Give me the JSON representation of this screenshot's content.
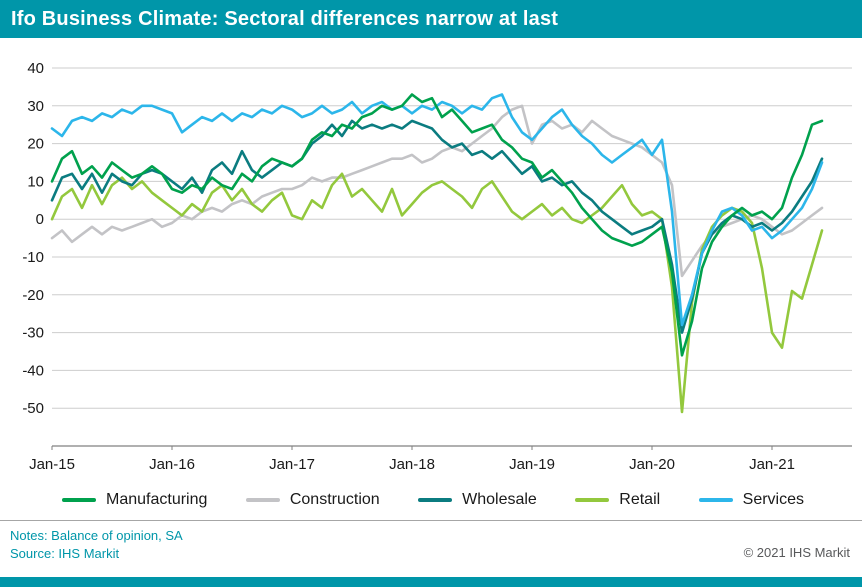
{
  "header": {
    "title": "Ifo Business Climate: Sectoral differences narrow at last"
  },
  "notes": {
    "line1": "Notes: Balance of opinion, SA",
    "line2": "Source: IHS Markit",
    "copyright": "© 2021 IHS Markit"
  },
  "colors": {
    "header_bg": "#0096A9",
    "footer_bg": "#0096A9",
    "notes_text": "#0096A9",
    "copyright_text": "#58595B",
    "grid_line": "#CDCDCD",
    "axis_line": "#808080",
    "tick_text": "#1A1A1A"
  },
  "chart_data": {
    "type": "line",
    "title": "Ifo Business Climate: Sectoral differences narrow at last",
    "xlabel": "",
    "ylabel": "Balance of opinion, SA",
    "x_unit": "month",
    "x_start": "Jan-15",
    "x_end": "Jun-21",
    "x_tick_labels": [
      "Jan-15",
      "Jan-16",
      "Jan-17",
      "Jan-18",
      "Jan-19",
      "Jan-20",
      "Jan-21"
    ],
    "x_tick_month_index": [
      0,
      12,
      24,
      36,
      48,
      60,
      72
    ],
    "ylim": [
      -60,
      40
    ],
    "y_ticks": [
      40,
      30,
      20,
      10,
      0,
      -10,
      -20,
      -30,
      -40,
      -50
    ],
    "grid": true,
    "legend_position": "bottom",
    "series": [
      {
        "name": "Manufacturing",
        "color": "#00A14D",
        "values": [
          10,
          16,
          18,
          12,
          14,
          11,
          15,
          13,
          11,
          12,
          14,
          12,
          8,
          7,
          9,
          8,
          11,
          9,
          8,
          12,
          10,
          14,
          16,
          15,
          14,
          16,
          21,
          23,
          22,
          25,
          24,
          27,
          28,
          30,
          29,
          30,
          33,
          31,
          32,
          27,
          29,
          26,
          23,
          24,
          25,
          21,
          19,
          16,
          15,
          11,
          13,
          10,
          7,
          3,
          0,
          -3,
          -5,
          -6,
          -7,
          -6,
          -4,
          -2,
          -14,
          -36,
          -27,
          -13,
          -6,
          -2,
          1,
          3,
          1,
          2,
          0,
          3,
          11,
          17,
          25,
          26
        ]
      },
      {
        "name": "Construction",
        "color": "#C3C3C6",
        "values": [
          -5,
          -3,
          -6,
          -4,
          -2,
          -4,
          -2,
          -3,
          -2,
          -1,
          0,
          -2,
          -1,
          1,
          0,
          2,
          3,
          2,
          4,
          5,
          4,
          6,
          7,
          8,
          8,
          9,
          11,
          10,
          11,
          11,
          12,
          13,
          14,
          15,
          16,
          16,
          17,
          15,
          16,
          18,
          19,
          18,
          20,
          22,
          24,
          27,
          29,
          30,
          20,
          25,
          26,
          24,
          25,
          23,
          26,
          24,
          22,
          21,
          20,
          19,
          17,
          15,
          9,
          -15,
          -11,
          -7,
          -4,
          -2,
          -1,
          0,
          1,
          0,
          -2,
          -4,
          -3,
          -1,
          1,
          3
        ]
      },
      {
        "name": "Wholesale",
        "color": "#0B7C80",
        "values": [
          5,
          11,
          12,
          8,
          12,
          7,
          12,
          10,
          9,
          12,
          13,
          12,
          10,
          8,
          11,
          7,
          13,
          15,
          12,
          18,
          13,
          11,
          13,
          15,
          14,
          16,
          20,
          22,
          25,
          22,
          26,
          24,
          25,
          24,
          25,
          24,
          26,
          25,
          24,
          21,
          19,
          20,
          17,
          18,
          16,
          18,
          15,
          12,
          14,
          10,
          11,
          9,
          10,
          7,
          5,
          2,
          0,
          -2,
          -4,
          -3,
          -2,
          0,
          -12,
          -30,
          -21,
          -9,
          -4,
          -1,
          1,
          0,
          -2,
          -1,
          -3,
          -1,
          2,
          6,
          10,
          16
        ]
      },
      {
        "name": "Retail",
        "color": "#93C83D",
        "values": [
          0,
          6,
          8,
          3,
          9,
          4,
          9,
          11,
          8,
          10,
          7,
          5,
          3,
          1,
          4,
          2,
          7,
          9,
          5,
          8,
          4,
          2,
          5,
          7,
          1,
          0,
          5,
          3,
          9,
          12,
          6,
          8,
          5,
          2,
          8,
          1,
          4,
          7,
          9,
          10,
          8,
          6,
          3,
          8,
          10,
          6,
          2,
          0,
          2,
          4,
          1,
          3,
          0,
          -1,
          1,
          3,
          6,
          9,
          4,
          1,
          2,
          0,
          -18,
          -51,
          -22,
          -8,
          -2,
          1,
          3,
          2,
          -1,
          -13,
          -30,
          -34,
          -19,
          -21,
          -12,
          -3
        ]
      },
      {
        "name": "Services",
        "color": "#2CB6EA",
        "values": [
          24,
          22,
          26,
          27,
          26,
          28,
          27,
          29,
          28,
          30,
          30,
          29,
          28,
          23,
          25,
          27,
          26,
          28,
          26,
          28,
          27,
          29,
          28,
          30,
          29,
          27,
          28,
          30,
          28,
          29,
          31,
          28,
          30,
          31,
          29,
          30,
          28,
          30,
          29,
          31,
          30,
          28,
          30,
          29,
          32,
          33,
          27,
          23,
          21,
          24,
          27,
          29,
          25,
          22,
          20,
          17,
          15,
          17,
          19,
          21,
          17,
          21,
          2,
          -28,
          -20,
          -9,
          -3,
          2,
          3,
          1,
          -3,
          -2,
          -5,
          -3,
          0,
          3,
          8,
          15
        ]
      }
    ]
  }
}
